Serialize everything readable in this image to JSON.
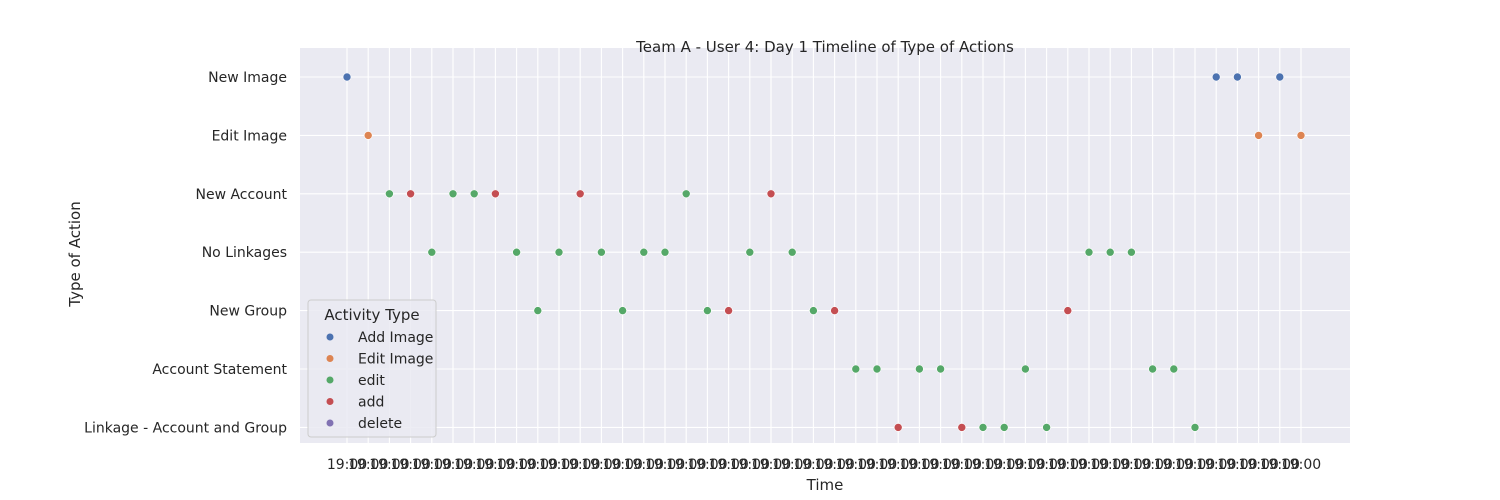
{
  "chart_data": {
    "type": "scatter",
    "title": "Team A - User 4: Day 1 Timeline of Type of Actions",
    "xlabel": "Time",
    "ylabel": "Type of Action",
    "grid": true,
    "background": "#eaeaf2",
    "y_categories": [
      "New Image",
      "Edit Image",
      "New Account",
      "No Linkages",
      "New Group",
      "Account Statement",
      "Linkage - Account and Group"
    ],
    "x_tick_labels": [
      "19:00",
      "19:00",
      "19:00",
      "19:00",
      "19:00",
      "19:00",
      "19:00",
      "19:00",
      "19:00",
      "19:00",
      "19:00",
      "19:00",
      "19:00",
      "19:00",
      "19:00",
      "19:00",
      "19:00",
      "19:00",
      "19:00",
      "19:00",
      "19:00",
      "19:00",
      "19:00",
      "19:00",
      "19:00",
      "19:00",
      "19:00",
      "19:00",
      "19:00",
      "19:00",
      "19:00",
      "19:00",
      "19:00",
      "19:00",
      "19:00",
      "19:00",
      "19:00",
      "19:00",
      "19:00",
      "19:00",
      "19:00",
      "19:00",
      "19:00",
      "19:00",
      "19:00",
      "19:00"
    ],
    "legend": {
      "title": "Activity Type",
      "position": "lower-left",
      "entries": [
        {
          "name": "Add Image",
          "color": "#4c72b0"
        },
        {
          "name": "Edit Image",
          "color": "#dd8452"
        },
        {
          "name": "edit",
          "color": "#55a868"
        },
        {
          "name": "add",
          "color": "#c44e52"
        },
        {
          "name": "delete",
          "color": "#8172b3"
        }
      ]
    },
    "series": [
      {
        "name": "Add Image",
        "color": "#4c72b0",
        "points": [
          [
            0,
            "New Image"
          ],
          [
            41,
            "New Image"
          ],
          [
            42,
            "New Image"
          ],
          [
            44,
            "New Image"
          ]
        ]
      },
      {
        "name": "Edit Image",
        "color": "#dd8452",
        "points": [
          [
            1,
            "Edit Image"
          ],
          [
            43,
            "Edit Image"
          ],
          [
            45,
            "Edit Image"
          ]
        ]
      },
      {
        "name": "edit",
        "color": "#55a868",
        "points": [
          [
            2,
            "New Account"
          ],
          [
            5,
            "New Account"
          ],
          [
            6,
            "New Account"
          ],
          [
            16,
            "New Account"
          ],
          [
            4,
            "No Linkages"
          ],
          [
            8,
            "No Linkages"
          ],
          [
            10,
            "No Linkages"
          ],
          [
            12,
            "No Linkages"
          ],
          [
            14,
            "No Linkages"
          ],
          [
            15,
            "No Linkages"
          ],
          [
            19,
            "No Linkages"
          ],
          [
            21,
            "No Linkages"
          ],
          [
            35,
            "No Linkages"
          ],
          [
            36,
            "No Linkages"
          ],
          [
            37,
            "No Linkages"
          ],
          [
            9,
            "New Group"
          ],
          [
            13,
            "New Group"
          ],
          [
            17,
            "New Group"
          ],
          [
            22,
            "New Group"
          ],
          [
            24,
            "Account Statement"
          ],
          [
            25,
            "Account Statement"
          ],
          [
            27,
            "Account Statement"
          ],
          [
            28,
            "Account Statement"
          ],
          [
            32,
            "Account Statement"
          ],
          [
            38,
            "Account Statement"
          ],
          [
            39,
            "Account Statement"
          ],
          [
            30,
            "Linkage - Account and Group"
          ],
          [
            31,
            "Linkage - Account and Group"
          ],
          [
            33,
            "Linkage - Account and Group"
          ],
          [
            40,
            "Linkage - Account and Group"
          ]
        ]
      },
      {
        "name": "add",
        "color": "#c44e52",
        "points": [
          [
            3,
            "New Account"
          ],
          [
            7,
            "New Account"
          ],
          [
            11,
            "New Account"
          ],
          [
            20,
            "New Account"
          ],
          [
            18,
            "New Group"
          ],
          [
            23,
            "New Group"
          ],
          [
            34,
            "New Group"
          ],
          [
            26,
            "Linkage - Account and Group"
          ],
          [
            29,
            "Linkage - Account and Group"
          ]
        ]
      },
      {
        "name": "delete",
        "color": "#8172b3",
        "points": []
      }
    ]
  }
}
